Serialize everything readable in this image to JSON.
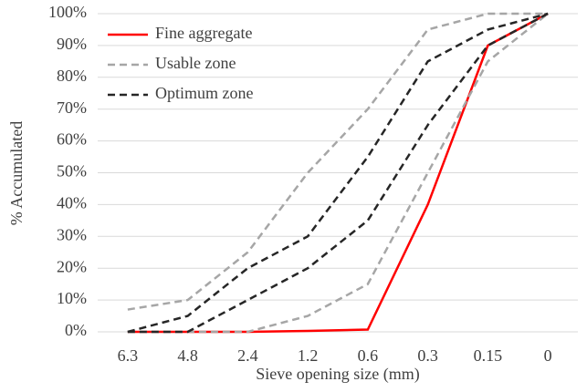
{
  "chart_data": {
    "type": "line",
    "x_label": "Sieve opening size (mm)",
    "y_label": "% Accumulated",
    "categories": [
      "6.3",
      "4.8",
      "2.4",
      "1.2",
      "0.6",
      "0.3",
      "0.15",
      "0"
    ],
    "series": [
      {
        "name": "Fine aggregate",
        "color": "#ff0000",
        "dash": false,
        "lines": [
          [
            0,
            0,
            0,
            0.3,
            0.7,
            40,
            90,
            100
          ]
        ]
      },
      {
        "name": "Usable zone",
        "color": "#a6a6a6",
        "dash": true,
        "lines": [
          [
            0,
            0,
            0,
            5,
            15,
            50,
            85,
            100
          ],
          [
            7,
            10,
            25,
            50,
            70,
            95,
            100,
            100
          ]
        ]
      },
      {
        "name": "Optimum zone",
        "color": "#262626",
        "dash": true,
        "lines": [
          [
            0,
            0,
            10,
            20,
            35,
            65,
            90,
            100
          ],
          [
            0,
            5,
            20,
            30,
            55,
            85,
            95,
            100
          ]
        ]
      }
    ],
    "ylim": [
      0,
      100
    ],
    "yticks": [
      {
        "value": 0,
        "label": "0%"
      },
      {
        "value": 10,
        "label": "10%"
      },
      {
        "value": 20,
        "label": "20%"
      },
      {
        "value": 30,
        "label": "30%"
      },
      {
        "value": 40,
        "label": "40%"
      },
      {
        "value": 50,
        "label": "50%"
      },
      {
        "value": 60,
        "label": "60%"
      },
      {
        "value": 70,
        "label": "70%"
      },
      {
        "value": 80,
        "label": "80%"
      },
      {
        "value": 90,
        "label": "90%"
      },
      {
        "value": 100,
        "label": "100%"
      }
    ],
    "grid": true,
    "legend": "top-left"
  }
}
